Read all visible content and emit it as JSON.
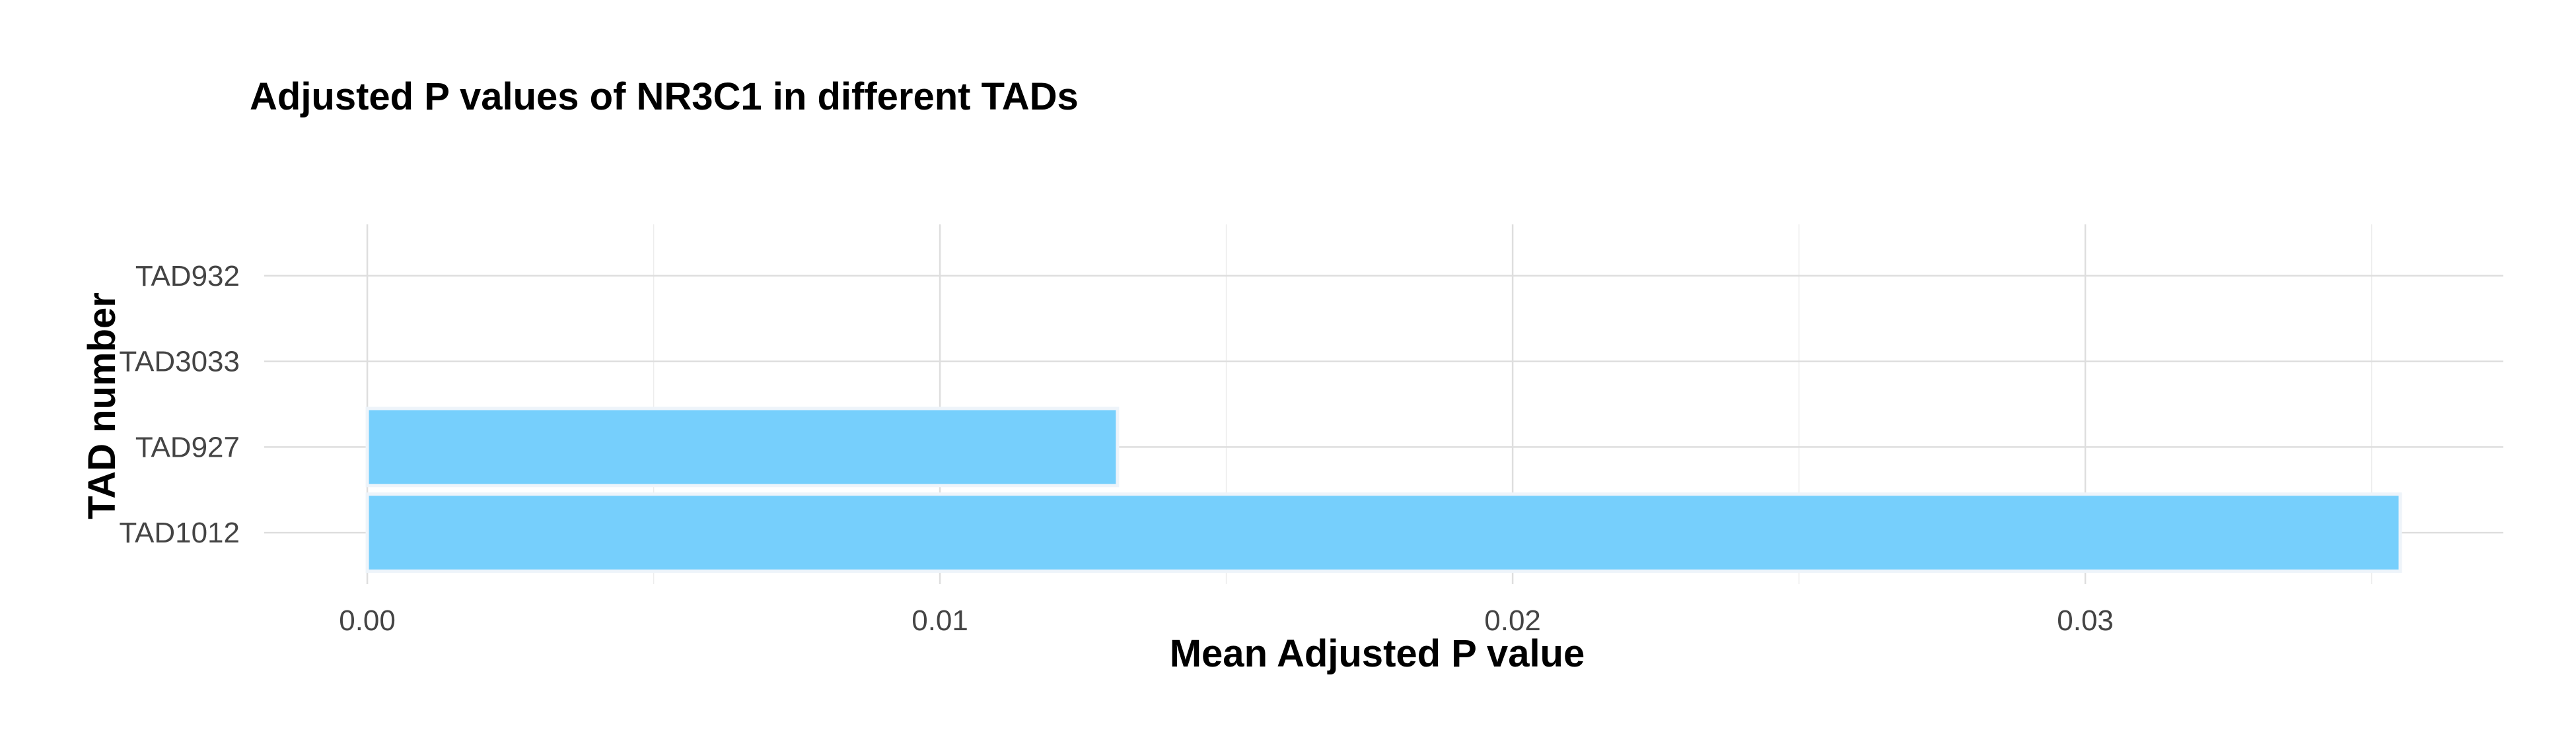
{
  "chart_data": {
    "type": "bar",
    "orientation": "horizontal",
    "title": "Adjusted P values of NR3C1 in different TADs",
    "xlabel": "Mean Adjusted P value",
    "ylabel": "TAD number",
    "categories": [
      "TAD1012",
      "TAD927",
      "TAD3033",
      "TAD932"
    ],
    "values": [
      0.0355,
      0.0131,
      0.0,
      0.0
    ],
    "xlim": [
      -0.0018,
      0.0373
    ],
    "xticks": [
      0.0,
      0.01,
      0.02,
      0.03
    ],
    "xtick_labels": [
      "0.00",
      "0.01",
      "0.02",
      "0.03"
    ],
    "grid": true,
    "legend": "none",
    "bar_color": "#76cffc",
    "bar_outline_color": "#eef4fa",
    "grid_color": "#dedede",
    "background_color": "#ffffff"
  }
}
